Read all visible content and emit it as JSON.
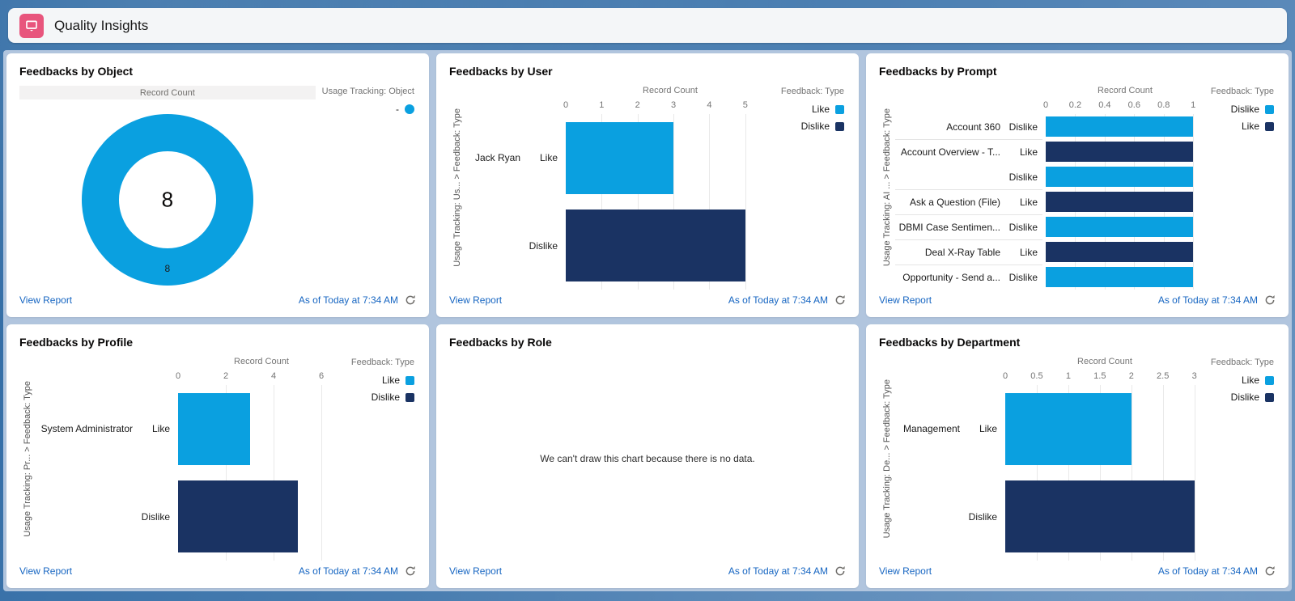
{
  "header": {
    "title": "Quality Insights"
  },
  "footer": {
    "view_report": "View Report",
    "as_of": "As of Today at 7:34 AM"
  },
  "colors": {
    "like_blue": "#0AA0E0",
    "dislike_navy": "#1A3363",
    "link_blue": "#1766C2",
    "header_icon_pink": "#E8557D"
  },
  "panels": [
    {
      "title": "Feedbacks by Object"
    },
    {
      "title": "Feedbacks by User"
    },
    {
      "title": "Feedbacks by Prompt"
    },
    {
      "title": "Feedbacks by Profile"
    },
    {
      "title": "Feedbacks by Role"
    },
    {
      "title": "Feedbacks by Department"
    }
  ],
  "chart_data": [
    {
      "title": "Feedbacks by Object",
      "type": "pie",
      "donut": true,
      "header_band": "Record Count",
      "legend_title": "Usage Tracking: Object",
      "legend_items": [
        {
          "label": "-",
          "color": "#0AA0E0",
          "shape": "circle"
        }
      ],
      "center_total": "8",
      "slices": [
        {
          "label": "8",
          "value": 8,
          "color": "#0AA0E0"
        }
      ]
    },
    {
      "title": "Feedbacks by User",
      "type": "bar",
      "orientation": "horizontal",
      "axis_title": "Record Count",
      "ticks": [
        0,
        1,
        2,
        3,
        4,
        5
      ],
      "axis_max": 5,
      "y_axis_label": "Usage Tracking: Us... > Feedback: Type",
      "legend_title": "Feedback: Type",
      "legend_items": [
        {
          "label": "Like",
          "color": "#0AA0E0"
        },
        {
          "label": "Dislike",
          "color": "#1A3363"
        }
      ],
      "rows": [
        {
          "group": "Jack Ryan",
          "series": "Like",
          "value": 3,
          "color": "#0AA0E0"
        },
        {
          "group": "",
          "series": "Dislike",
          "value": 5,
          "color": "#1A3363"
        }
      ]
    },
    {
      "title": "Feedbacks by Prompt",
      "type": "bar",
      "orientation": "horizontal",
      "axis_title": "Record Count",
      "ticks": [
        0,
        0.2,
        0.4,
        0.6,
        0.8,
        1
      ],
      "axis_max": 1,
      "y_axis_label": "Usage Tracking: AI ... > Feedback: Type",
      "legend_title": "Feedback: Type",
      "legend_items": [
        {
          "label": "Dislike",
          "color": "#0AA0E0"
        },
        {
          "label": "Like",
          "color": "#1A3363"
        }
      ],
      "rows": [
        {
          "group": "Account 360",
          "series": "Dislike",
          "value": 1,
          "color": "#0AA0E0",
          "sep_after": true
        },
        {
          "group": "Account Overview - T...",
          "series": "Like",
          "value": 1,
          "color": "#1A3363"
        },
        {
          "group": "",
          "series": "Dislike",
          "value": 1,
          "color": "#0AA0E0",
          "sep_after": true
        },
        {
          "group": "Ask a Question (File)",
          "series": "Like",
          "value": 1,
          "color": "#1A3363",
          "sep_after": true
        },
        {
          "group": "DBMI Case Sentimen...",
          "series": "Dislike",
          "value": 1,
          "color": "#0AA0E0",
          "sep_after": true
        },
        {
          "group": "Deal X-Ray Table",
          "series": "Like",
          "value": 1,
          "color": "#1A3363",
          "sep_after": true
        },
        {
          "group": "Opportunity - Send a...",
          "series": "Dislike",
          "value": 1,
          "color": "#0AA0E0"
        }
      ]
    },
    {
      "title": "Feedbacks by Profile",
      "type": "bar",
      "orientation": "horizontal",
      "axis_title": "Record Count",
      "ticks": [
        0,
        2,
        4,
        6
      ],
      "axis_max": 6,
      "y_axis_label": "Usage Tracking: Pr... > Feedback: Type",
      "legend_title": "Feedback: Type",
      "legend_items": [
        {
          "label": "Like",
          "color": "#0AA0E0"
        },
        {
          "label": "Dislike",
          "color": "#1A3363"
        }
      ],
      "rows": [
        {
          "group": "System Administrator",
          "series": "Like",
          "value": 3,
          "color": "#0AA0E0"
        },
        {
          "group": "",
          "series": "Dislike",
          "value": 5,
          "color": "#1A3363"
        }
      ]
    },
    {
      "title": "Feedbacks by Role",
      "type": "empty",
      "message": "We can't draw this chart because there is no data."
    },
    {
      "title": "Feedbacks by Department",
      "type": "bar",
      "orientation": "horizontal",
      "axis_title": "Record Count",
      "ticks": [
        0,
        0.5,
        1,
        1.5,
        2,
        2.5,
        3
      ],
      "axis_max": 3,
      "y_axis_label": "Usage Tracking: De... > Feedback: Type",
      "legend_title": "Feedback: Type",
      "legend_items": [
        {
          "label": "Like",
          "color": "#0AA0E0"
        },
        {
          "label": "Dislike",
          "color": "#1A3363"
        }
      ],
      "rows": [
        {
          "group": "Management",
          "series": "Like",
          "value": 2,
          "color": "#0AA0E0"
        },
        {
          "group": "",
          "series": "Dislike",
          "value": 3,
          "color": "#1A3363"
        }
      ]
    }
  ]
}
